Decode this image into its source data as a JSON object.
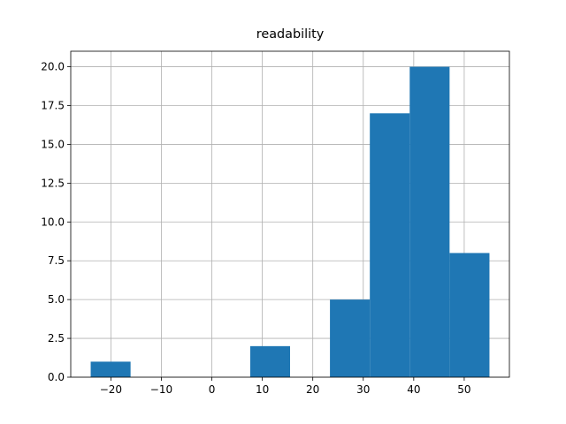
{
  "chart_data": {
    "type": "histogram",
    "title": "readability",
    "bins": [
      -24,
      -16.1,
      -8.2,
      -0.3,
      7.6,
      15.5,
      23.4,
      31.3,
      39.2,
      47.1,
      55
    ],
    "values": [
      1,
      0,
      0,
      0,
      2,
      0,
      5,
      17,
      20,
      8
    ],
    "color": "#1f77b4",
    "xlim": [
      -27.95,
      58.95
    ],
    "xticks": [
      {
        "value": -20,
        "label": "−20"
      },
      {
        "value": -10,
        "label": "−10"
      },
      0,
      10,
      20,
      30,
      40,
      50
    ],
    "ylim": [
      0,
      21
    ],
    "yticks": [
      {
        "value": 0,
        "label": "0.0"
      },
      {
        "value": 2.5,
        "label": "2.5"
      },
      {
        "value": 5,
        "label": "5.0"
      },
      {
        "value": 7.5,
        "label": "7.5"
      },
      {
        "value": 10,
        "label": "10.0"
      },
      {
        "value": 12.5,
        "label": "12.5"
      },
      {
        "value": 15,
        "label": "15.0"
      },
      {
        "value": 17.5,
        "label": "17.5"
      },
      {
        "value": 20,
        "label": "20.0"
      }
    ],
    "grid": true
  }
}
